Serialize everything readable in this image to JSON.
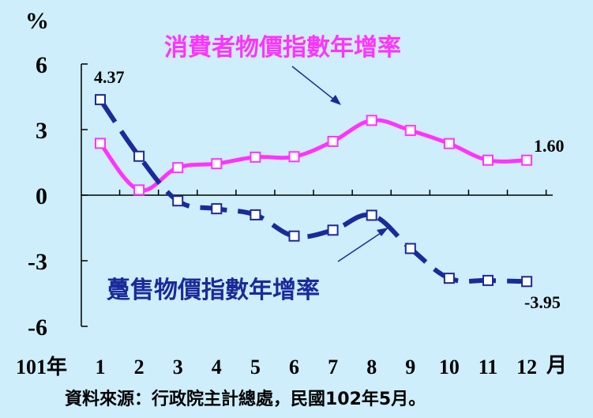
{
  "chart_data": {
    "type": "line",
    "y_unit_label": "%",
    "x_prefix_label": "101年",
    "x_suffix_label": "月",
    "categories": [
      "1",
      "2",
      "3",
      "4",
      "5",
      "6",
      "7",
      "8",
      "9",
      "10",
      "11",
      "12"
    ],
    "ylim": [
      -6,
      6
    ],
    "yticks": [
      "6",
      "3",
      "0",
      "-3",
      "-6"
    ],
    "grid": false,
    "series": [
      {
        "name": "消費者物價指數年增率",
        "color": "#ff33ff",
        "style": "solid",
        "values": [
          2.37,
          0.24,
          1.26,
          1.44,
          1.74,
          1.76,
          2.46,
          3.42,
          2.96,
          2.36,
          1.6,
          1.6
        ]
      },
      {
        "name": "躉售物價指數年增率",
        "color": "#1a2a9a",
        "style": "dashed",
        "values": [
          4.37,
          1.78,
          -0.26,
          -0.62,
          -0.9,
          -1.87,
          -1.6,
          -0.92,
          -2.44,
          -3.8,
          -3.9,
          -3.95
        ]
      }
    ],
    "annotations": {
      "first_wpi": "4.37",
      "last_cpi": "1.60",
      "last_wpi": "-3.95"
    }
  },
  "source_note": "資料來源：行政院主計總處，民國102年5月。"
}
